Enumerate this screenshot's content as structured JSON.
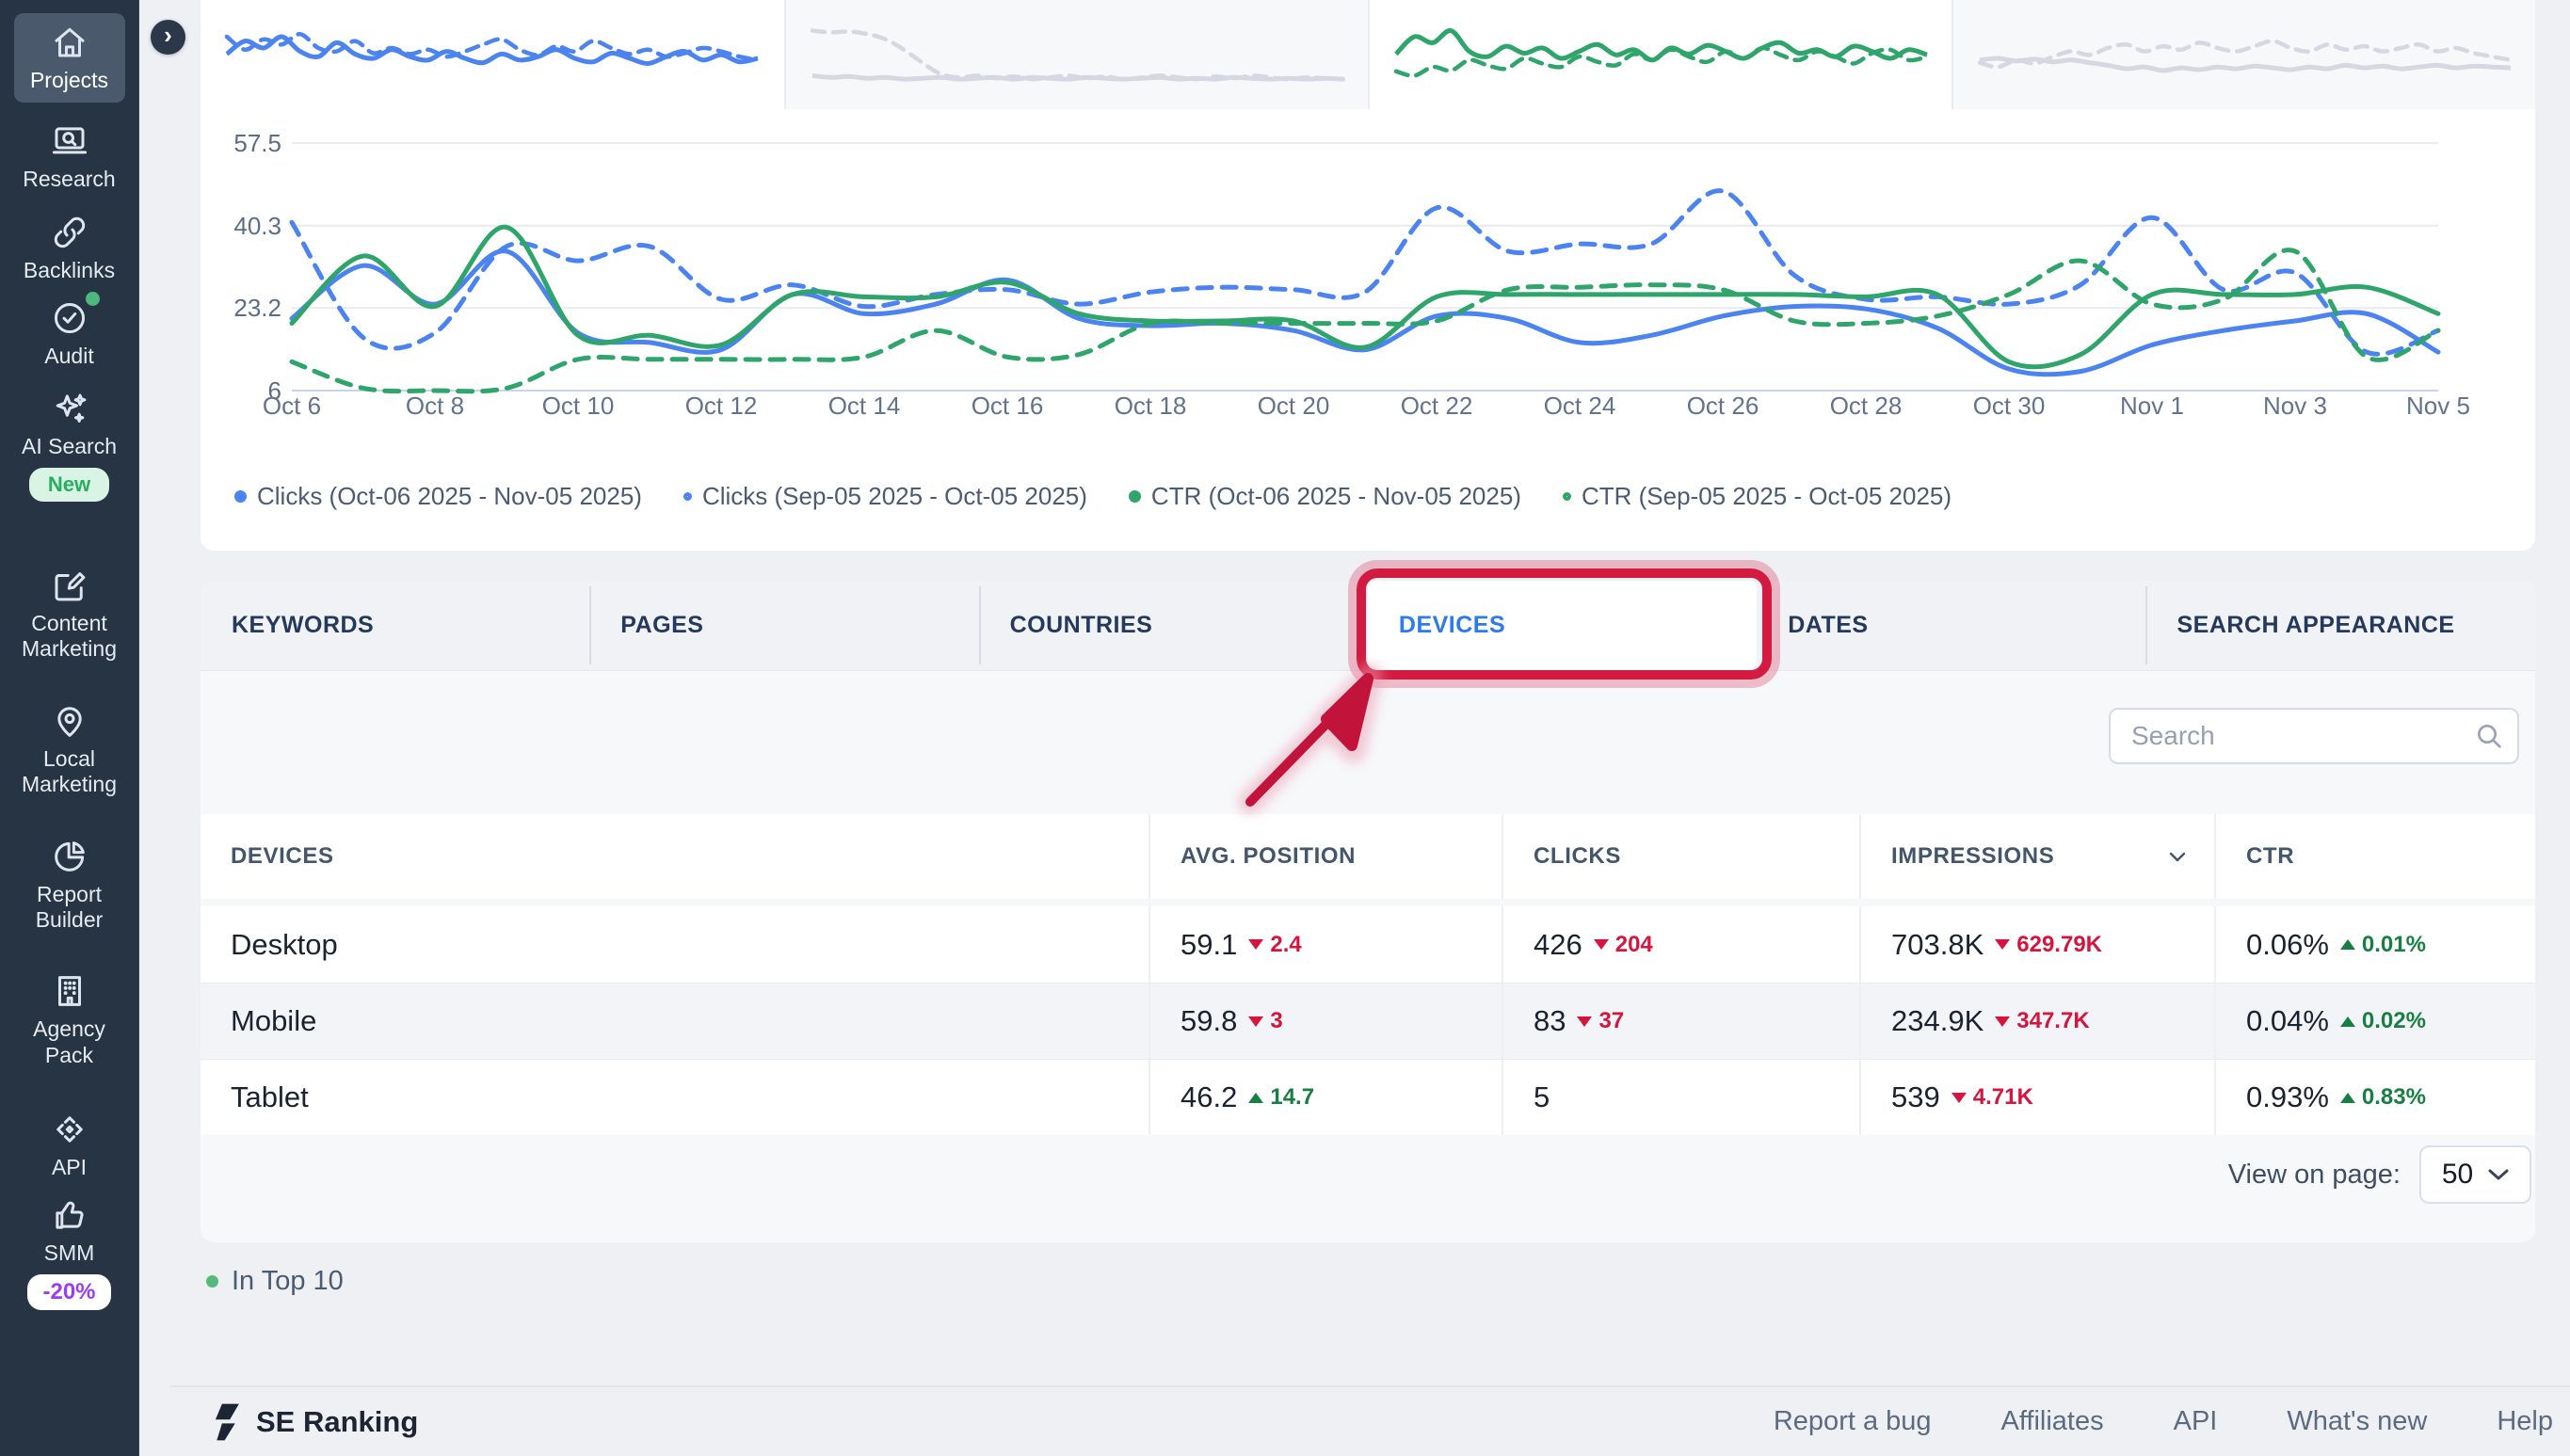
{
  "sidebar": {
    "collapse_icon": "›",
    "items": [
      {
        "label": "Projects",
        "icon": "home-icon",
        "active": true
      },
      {
        "label": "Research",
        "icon": "research-icon"
      },
      {
        "label": "Backlinks",
        "icon": "backlinks-icon"
      },
      {
        "label": "Audit",
        "icon": "audit-icon",
        "dot": true
      },
      {
        "label": "AI Search",
        "icon": "ai-search-icon",
        "badge": "New",
        "badge_style": "new"
      },
      {
        "label": "Content Marketing",
        "icon": "content-marketing-icon"
      },
      {
        "label": "Local Marketing",
        "icon": "local-marketing-icon"
      },
      {
        "label": "Report Builder",
        "icon": "report-builder-icon"
      },
      {
        "label": "Agency Pack",
        "icon": "agency-pack-icon"
      },
      {
        "label": "API",
        "icon": "api-icon"
      },
      {
        "label": "SMM",
        "icon": "smm-icon",
        "badge": "-20%",
        "badge_style": "promo"
      }
    ]
  },
  "chart_data": {
    "type": "line",
    "x": [
      "Oct 6",
      "Oct 7",
      "Oct 8",
      "Oct 9",
      "Oct 10",
      "Oct 11",
      "Oct 12",
      "Oct 13",
      "Oct 14",
      "Oct 15",
      "Oct 16",
      "Oct 17",
      "Oct 18",
      "Oct 19",
      "Oct 20",
      "Oct 21",
      "Oct 22",
      "Oct 23",
      "Oct 24",
      "Oct 25",
      "Oct 26",
      "Oct 27",
      "Oct 28",
      "Oct 29",
      "Oct 30",
      "Oct 31",
      "Nov 1",
      "Nov 2",
      "Nov 3",
      "Nov 4",
      "Nov 5"
    ],
    "x_label_step": 2,
    "y_ticks": [
      57.5,
      40.3,
      23.2,
      6
    ],
    "ylim": [
      6,
      57.5
    ],
    "grid": true,
    "legend_position": "bottom",
    "series": [
      {
        "name": "Clicks (Oct-06 2025 - Nov-05 2025)",
        "color": "#4b83f1",
        "style": "solid",
        "values": [
          21,
          32,
          24,
          35,
          18,
          16,
          14.5,
          26,
          22,
          24,
          29,
          21,
          19.5,
          20,
          18.5,
          14.5,
          21.5,
          21,
          16,
          17.5,
          21.5,
          23.5,
          23,
          19,
          10.5,
          10,
          15.5,
          18.5,
          20.5,
          22,
          14
        ]
      },
      {
        "name": "Clicks (Sep-05 2025 - Oct-05 2025)",
        "color": "#4b83f1",
        "style": "dashed",
        "values": [
          41,
          17,
          18,
          36,
          33,
          36,
          25,
          28,
          23.5,
          26,
          27,
          24,
          26.5,
          27.5,
          27,
          26.5,
          44,
          35,
          36.5,
          36.5,
          47.5,
          30,
          25,
          25.5,
          24,
          28,
          42,
          27,
          30.5,
          14,
          18.5
        ]
      },
      {
        "name": "CTR (Oct-06 2025 - Nov-05 2025)",
        "color": "#2fa56c",
        "style": "solid",
        "values": [
          20,
          34,
          23.5,
          40,
          17.5,
          17.5,
          15.5,
          26,
          25.5,
          25.5,
          28.5,
          22,
          20.5,
          20.5,
          20.5,
          15,
          25.5,
          26,
          26,
          26,
          26,
          26,
          25.5,
          26,
          12,
          13.5,
          26,
          26,
          26,
          27.5,
          22
        ]
      },
      {
        "name": "CTR (Sep-05 2025 - Oct-05 2025)",
        "color": "#2fa56c",
        "style": "dashed",
        "values": [
          12,
          6.5,
          6,
          6.5,
          12.5,
          12.5,
          12.5,
          12.5,
          13,
          18.5,
          13,
          13.5,
          20,
          20,
          20,
          20,
          20.5,
          27,
          27.5,
          28,
          27,
          20.5,
          20,
          21.5,
          26,
          33,
          24,
          25,
          35,
          13,
          18.5
        ]
      }
    ],
    "sparklines": [
      {
        "bg": "#ffffff",
        "color": "#4b83f1",
        "solid": [
          55,
          70,
          62,
          75,
          58,
          52,
          68,
          55,
          50,
          60,
          52,
          48,
          58,
          50,
          45,
          55,
          48,
          52,
          60,
          50,
          46,
          56,
          50,
          44,
          52,
          58,
          48,
          54,
          46,
          50
        ],
        "dashed": [
          75,
          60,
          72,
          66,
          78,
          62,
          58,
          70,
          56,
          62,
          55,
          60,
          52,
          58,
          66,
          72,
          60,
          54,
          64,
          58,
          70,
          62,
          55,
          60,
          52,
          56,
          62,
          58,
          52,
          48
        ]
      },
      {
        "bg": "#f7f8fa",
        "color": "#d5d8e2",
        "solid": [
          30,
          28,
          29,
          27,
          28,
          26,
          27,
          28,
          26,
          27,
          28,
          26,
          28,
          27,
          26,
          28,
          27,
          26,
          27,
          28,
          26,
          27,
          26,
          28,
          27,
          26,
          27,
          26,
          27,
          26
        ],
        "dashed": [
          82,
          80,
          81,
          78,
          72,
          60,
          45,
          32,
          28,
          30,
          27,
          29,
          26,
          28,
          30,
          27,
          29,
          26,
          28,
          30,
          28,
          26,
          29,
          27,
          30,
          28,
          26,
          28,
          27,
          26
        ]
      },
      {
        "bg": "#ffffff",
        "color": "#2fa56c",
        "solid": [
          55,
          75,
          68,
          82,
          58,
          52,
          64,
          56,
          62,
          50,
          58,
          66,
          54,
          60,
          48,
          62,
          55,
          65,
          58,
          50,
          62,
          68,
          56,
          60,
          52,
          64,
          58,
          50,
          60,
          54
        ],
        "dashed": [
          35,
          30,
          40,
          36,
          48,
          42,
          38,
          50,
          44,
          40,
          52,
          46,
          42,
          55,
          48,
          60,
          52,
          46,
          58,
          50,
          62,
          54,
          48,
          58,
          52,
          44,
          56,
          60,
          48,
          52
        ]
      },
      {
        "bg": "#f7f8fa",
        "color": "#d5d8e2",
        "solid": [
          48,
          50,
          47,
          49,
          46,
          48,
          45,
          42,
          38,
          40,
          36,
          39,
          37,
          40,
          38,
          41,
          39,
          37,
          40,
          38,
          42,
          39,
          41,
          38,
          40,
          42,
          39,
          41,
          40,
          39
        ],
        "dashed": [
          45,
          40,
          48,
          44,
          52,
          58,
          54,
          62,
          66,
          58,
          64,
          60,
          68,
          62,
          58,
          64,
          70,
          62,
          58,
          66,
          60,
          64,
          58,
          62,
          66,
          58,
          62,
          56,
          52,
          48
        ]
      }
    ]
  },
  "tabs": [
    {
      "label": "KEYWORDS"
    },
    {
      "label": "PAGES"
    },
    {
      "label": "COUNTRIES"
    },
    {
      "label": "DEVICES",
      "active": true
    },
    {
      "label": "DATES"
    },
    {
      "label": "SEARCH APPEARANCE"
    }
  ],
  "search": {
    "placeholder": "Search"
  },
  "table": {
    "headers": [
      {
        "label": "DEVICES"
      },
      {
        "label": "AVG. POSITION"
      },
      {
        "label": "CLICKS"
      },
      {
        "label": "IMPRESSIONS",
        "sortable": true
      },
      {
        "label": "CTR"
      }
    ],
    "rows": [
      {
        "device": "Desktop",
        "avg_position": {
          "value": "59.1",
          "delta": "2.4",
          "dir": "down"
        },
        "clicks": {
          "value": "426",
          "delta": "204",
          "dir": "down"
        },
        "impressions": {
          "value": "703.8K",
          "delta": "629.79K",
          "dir": "down"
        },
        "ctr": {
          "value": "0.06%",
          "delta": "0.01%",
          "dir": "up"
        }
      },
      {
        "device": "Mobile",
        "avg_position": {
          "value": "59.8",
          "delta": "3",
          "dir": "down"
        },
        "clicks": {
          "value": "83",
          "delta": "37",
          "dir": "down"
        },
        "impressions": {
          "value": "234.9K",
          "delta": "347.7K",
          "dir": "down"
        },
        "ctr": {
          "value": "0.04%",
          "delta": "0.02%",
          "dir": "up"
        }
      },
      {
        "device": "Tablet",
        "avg_position": {
          "value": "46.2",
          "delta": "14.7",
          "dir": "up"
        },
        "clicks": {
          "value": "5",
          "delta": "",
          "dir": ""
        },
        "impressions": {
          "value": "539",
          "delta": "4.71K",
          "dir": "down"
        },
        "ctr": {
          "value": "0.93%",
          "delta": "0.83%",
          "dir": "up"
        }
      }
    ]
  },
  "pagination": {
    "label": "View on page:",
    "value": "50"
  },
  "legend_note": {
    "label": "In Top 10",
    "dot_color": "#56b87c"
  },
  "footer": {
    "brand": "SE Ranking",
    "links": [
      "Report a bug",
      "Affiliates",
      "API",
      "What's new",
      "Help"
    ]
  },
  "colors": {
    "accent_blue": "#2b7bed",
    "chart_blue": "#4b83f1",
    "chart_green": "#2fa56c",
    "delta_down_red": "#d6143e",
    "delta_up_green": "#177f41",
    "annotation_red": "#d31b41",
    "sidebar_bg": "#263444"
  }
}
